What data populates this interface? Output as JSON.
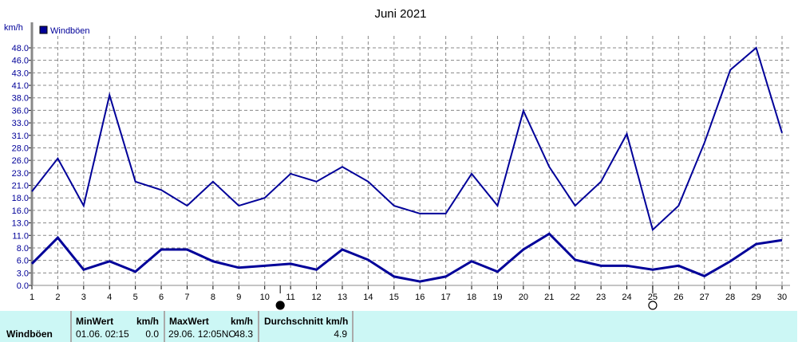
{
  "chart_data": {
    "type": "line",
    "title": "Juni 2021",
    "ylabel": "km/h",
    "legend": [
      {
        "label": "Windböen",
        "color": "#000099"
      }
    ],
    "legend_placement": "top-left",
    "grid": true,
    "ylim": [
      0,
      48.3
    ],
    "ytick_labels": [
      "0.0",
      "3.0",
      "6.0",
      "8.0",
      "11.0",
      "13.0",
      "16.0",
      "18.0",
      "21.0",
      "23.0",
      "26.0",
      "28.0",
      "31.0",
      "33.0",
      "36.0",
      "38.0",
      "41.0",
      "43.0",
      "46.0",
      "48.0"
    ],
    "x": [
      1,
      2,
      3,
      4,
      5,
      6,
      7,
      8,
      9,
      10,
      11,
      12,
      13,
      14,
      15,
      16,
      17,
      18,
      19,
      20,
      21,
      22,
      23,
      24,
      25,
      26,
      27,
      28,
      29,
      30
    ],
    "series": [
      {
        "color": "#000099",
        "values": [
          19.1,
          25.8,
          16.2,
          38.7,
          21.1,
          19.4,
          16.2,
          21.1,
          16.2,
          17.8,
          22.7,
          21.1,
          24.1,
          21.1,
          16.2,
          14.6,
          14.6,
          22.7,
          16.2,
          35.5,
          24.1,
          16.2,
          21.1,
          30.8,
          11.3,
          16.2,
          29.0,
          43.8,
          48.3,
          31.0
        ]
      },
      {
        "color": "#000099",
        "values": [
          4.4,
          9.7,
          3.2,
          4.9,
          2.8,
          7.3,
          7.3,
          4.9,
          3.6,
          4.0,
          4.4,
          3.2,
          7.3,
          5.2,
          1.8,
          0.8,
          1.8,
          4.9,
          2.8,
          7.3,
          10.5,
          5.2,
          4.0,
          4.0,
          3.2,
          4.0,
          1.9,
          4.9,
          8.4,
          9.2
        ]
      }
    ],
    "moon_phases": [
      {
        "day": 10.6,
        "icon": "moon-filled-icon"
      },
      {
        "day": 25.0,
        "icon": "moon-outline-icon"
      }
    ]
  },
  "table": {
    "series_label": "Windböen",
    "min_header": "MinWert",
    "min_unit": "km/h",
    "min_time": "01.06.  02:15",
    "min_value": "0.0",
    "max_header": "MaxWert",
    "max_unit": "km/h",
    "max_time": "29.06.  12:05NO",
    "max_value": "48.3",
    "avg_header": "Durchschnitt km/h",
    "avg_value": "4.9"
  }
}
